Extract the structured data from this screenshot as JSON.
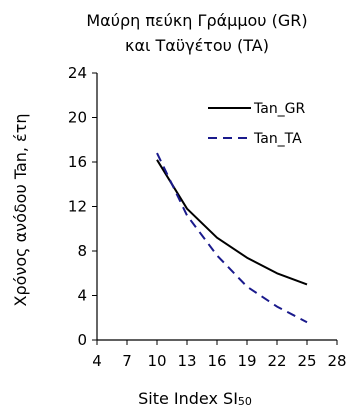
{
  "chart_data": {
    "type": "line",
    "title_line1": "Μαύρη πεύκη Γράμμου (GR)",
    "title_line2": "και Ταϋγέτου (TA)",
    "xlabel_main": "Site Index SI",
    "xlabel_sub": "50",
    "ylabel": "Χρόνος ανόδου Tan, έτη",
    "xlim": [
      4,
      28
    ],
    "ylim": [
      0,
      24
    ],
    "xticks": [
      4,
      7,
      10,
      13,
      16,
      19,
      22,
      25,
      28
    ],
    "yticks": [
      0,
      4,
      8,
      12,
      16,
      20,
      24
    ],
    "grid": false,
    "legend_position": "top-right",
    "series": [
      {
        "name": "Tan_GR",
        "color": "#000000",
        "dash": "solid",
        "x": [
          10,
          13,
          16,
          19,
          22,
          25
        ],
        "y": [
          16.2,
          11.8,
          9.2,
          7.4,
          6.0,
          5.0
        ]
      },
      {
        "name": "Tan_TA",
        "color": "#1a1a8c",
        "dash": "dashed",
        "x": [
          10,
          13,
          16,
          19,
          22,
          25
        ],
        "y": [
          16.8,
          11.2,
          7.6,
          4.8,
          3.0,
          1.6
        ]
      }
    ]
  }
}
